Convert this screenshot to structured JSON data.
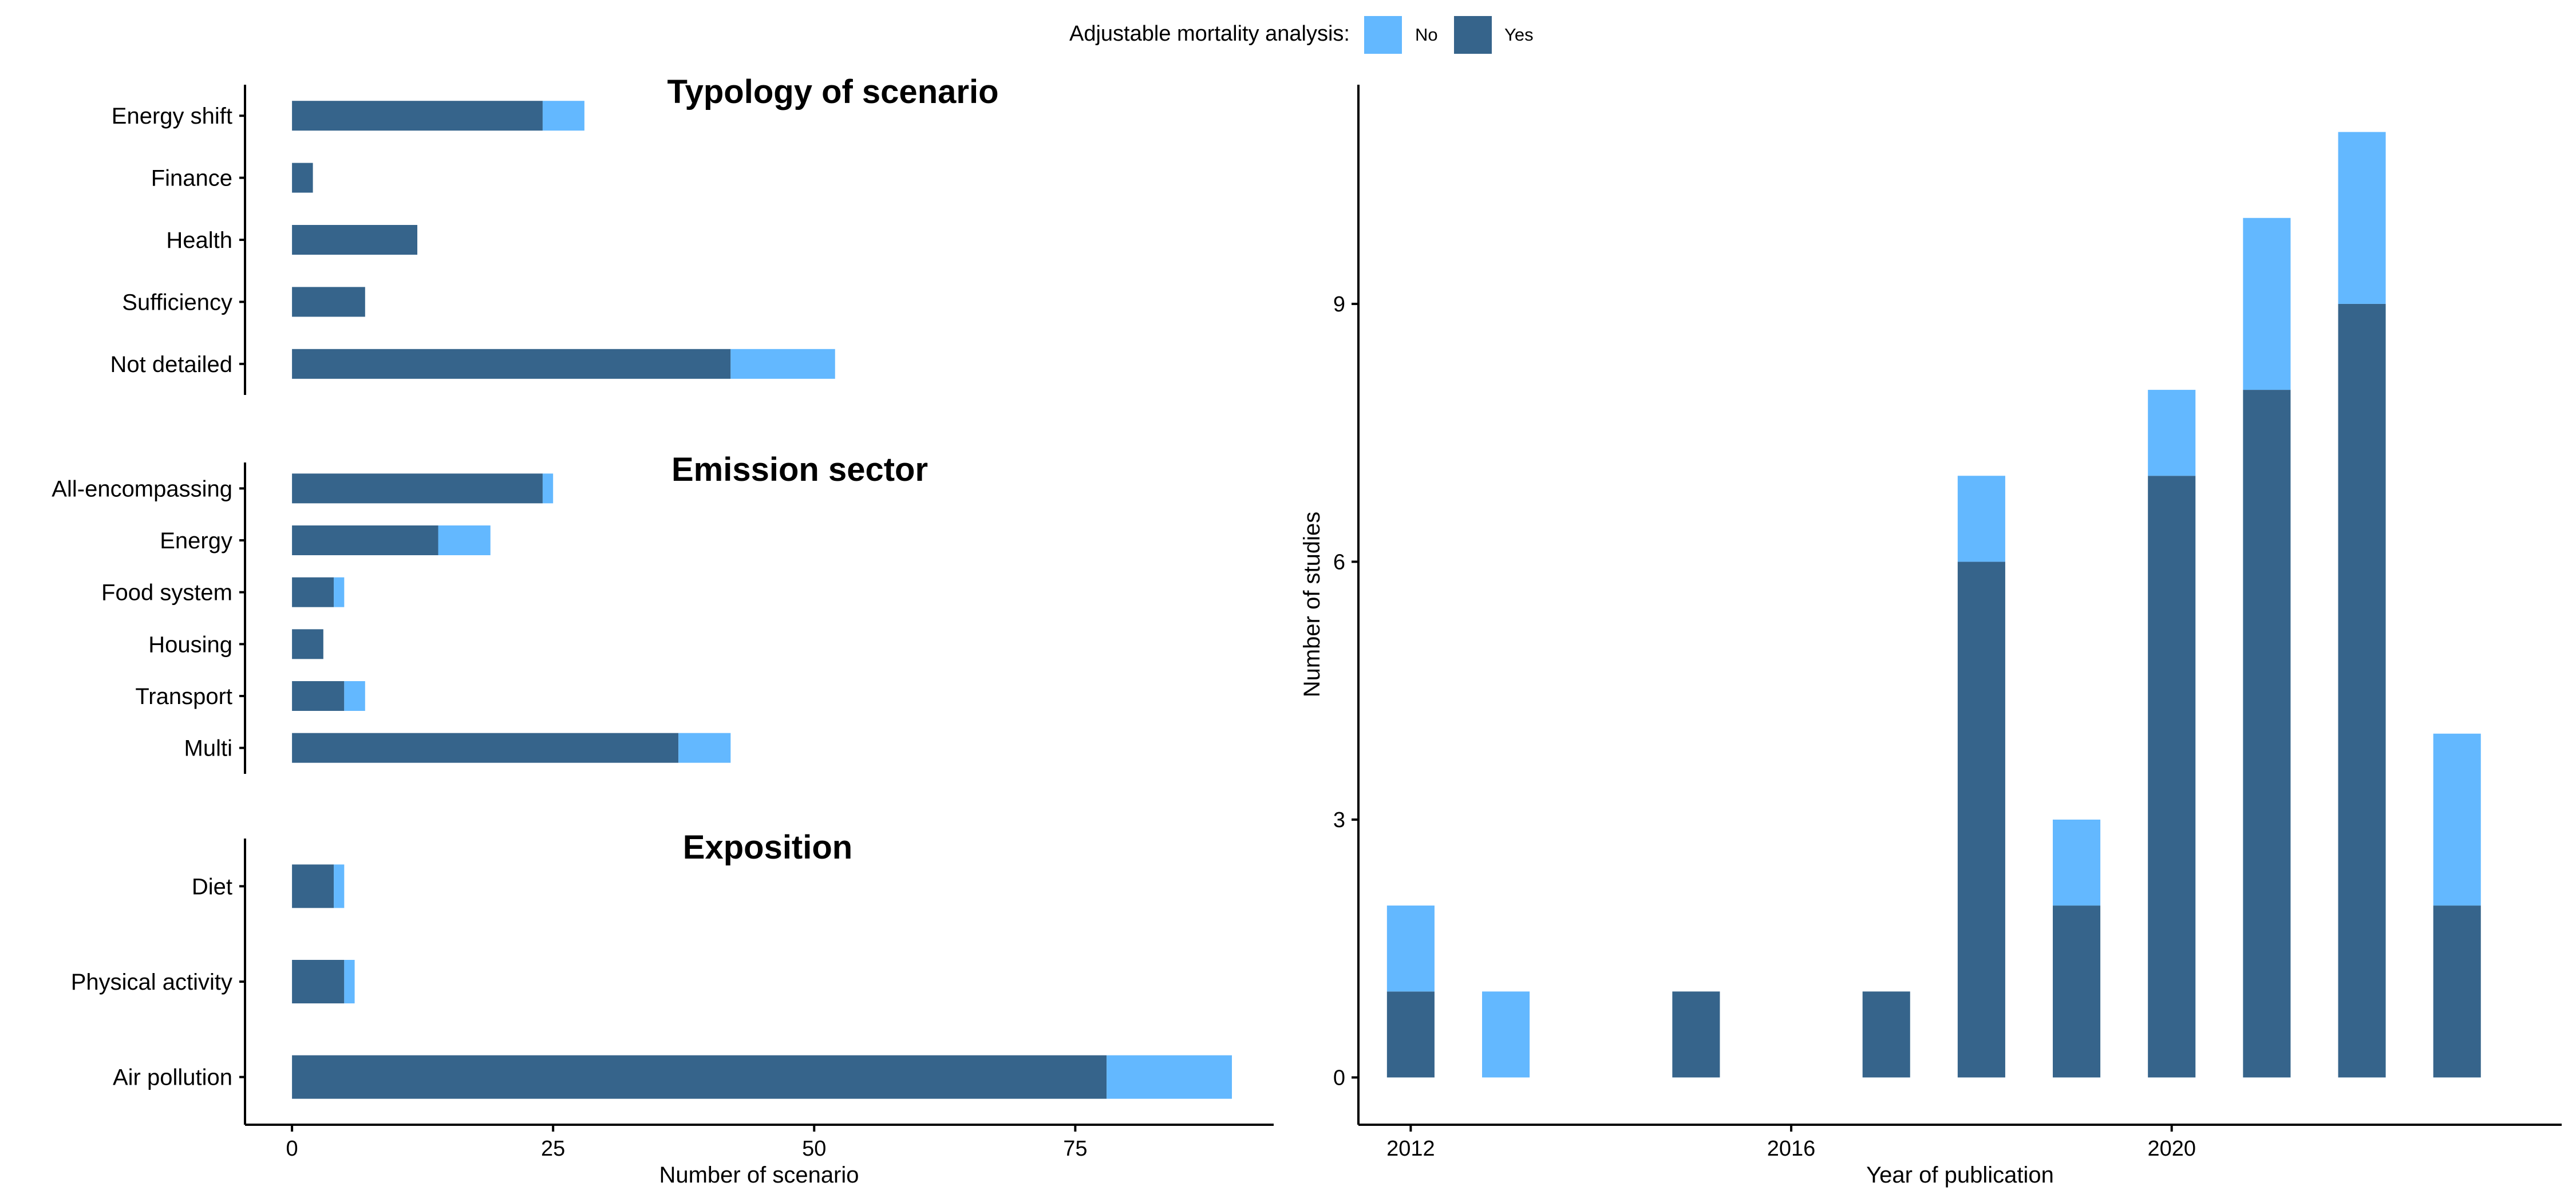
{
  "legend": {
    "title": "Adjustable mortality analysis:",
    "items": [
      {
        "label": "No",
        "color": "#63b8ff"
      },
      {
        "label": "Yes",
        "color": "#36648b"
      }
    ]
  },
  "colors": {
    "no": "#63b8ff",
    "yes": "#36648b",
    "axis": "#000000"
  },
  "chart_data": [
    {
      "type": "bar",
      "orientation": "horizontal",
      "stacked": true,
      "title": "Typology of scenario",
      "categories": [
        "Energy shift",
        "Finance",
        "Health",
        "Sufficiency",
        "Not detailed"
      ],
      "series": [
        {
          "name": "Yes",
          "values": [
            24,
            2,
            12,
            7,
            42
          ]
        },
        {
          "name": "No",
          "values": [
            4,
            0,
            0,
            0,
            10
          ]
        }
      ],
      "xlim": [
        -4.5,
        94
      ]
    },
    {
      "type": "bar",
      "orientation": "horizontal",
      "stacked": true,
      "title": "Emission sector",
      "categories": [
        "All-encompassing",
        "Energy",
        "Food system",
        "Housing",
        "Transport",
        "Multi"
      ],
      "series": [
        {
          "name": "Yes",
          "values": [
            24,
            14,
            4,
            3,
            5,
            37
          ]
        },
        {
          "name": "No",
          "values": [
            1,
            5,
            1,
            0,
            2,
            5
          ]
        }
      ],
      "xlim": [
        -4.5,
        94
      ]
    },
    {
      "type": "bar",
      "orientation": "horizontal",
      "stacked": true,
      "title": "Exposition",
      "categories": [
        "Diet",
        "Physical activity",
        "Air pollution"
      ],
      "series": [
        {
          "name": "Yes",
          "values": [
            4,
            5,
            78
          ]
        },
        {
          "name": "No",
          "values": [
            1,
            1,
            12
          ]
        }
      ],
      "xlabel": "Number of scenario",
      "xticks": [
        0,
        25,
        50,
        75
      ],
      "xlim": [
        -4.5,
        94
      ]
    },
    {
      "type": "bar",
      "stacked": true,
      "categories": [
        2012,
        2013,
        2015,
        2017,
        2018,
        2019,
        2020,
        2021,
        2022,
        2023
      ],
      "series": [
        {
          "name": "Yes",
          "values": [
            1,
            0,
            1,
            1,
            6,
            2,
            7,
            8,
            9,
            2
          ]
        },
        {
          "name": "No",
          "values": [
            1,
            1,
            0,
            0,
            1,
            1,
            1,
            2,
            2,
            2
          ]
        }
      ],
      "xlabel": "Year of publication",
      "ylabel": "Number of studies",
      "xticks": [
        2012,
        2016,
        2020
      ],
      "yticks": [
        0,
        3,
        6,
        9
      ],
      "xlim": [
        2011.45,
        2024.1
      ],
      "ylim": [
        -0.55,
        11.55
      ]
    }
  ]
}
